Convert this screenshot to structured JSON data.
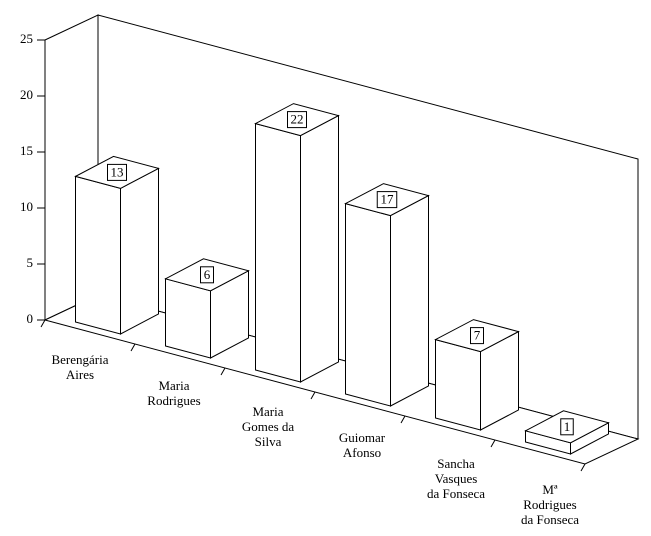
{
  "chart_data": {
    "type": "bar3d",
    "categories": [
      "Berengária\nAires",
      "Maria\nRodrigues",
      "Maria\nGomes da\nSilva",
      "Guiomar\nAfonso",
      "Sancha\nVasques\nda Fonseca",
      "Mª\nRodrigues\nda Fonseca"
    ],
    "values": [
      13,
      6,
      22,
      17,
      7,
      1
    ],
    "color": "#ffffff",
    "ylim": [
      0,
      25
    ],
    "yticks": [
      0,
      5,
      10,
      15,
      20,
      25
    ]
  }
}
